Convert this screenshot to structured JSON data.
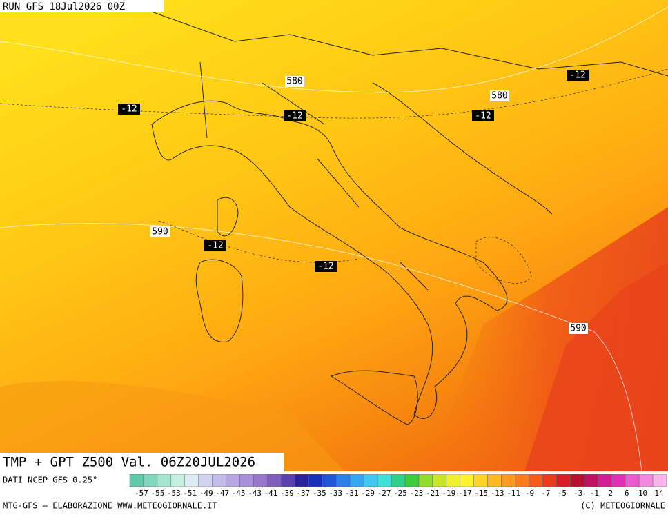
{
  "header": {
    "run": "RUN GFS 18Jul2026 00Z"
  },
  "map": {
    "title": "TMP + GPT Z500 Val. 06Z20JUL2026",
    "labels": [
      "580",
      "-12",
      "-12",
      "580",
      "-12",
      "-12",
      "590",
      "-12",
      "-12",
      "590"
    ]
  },
  "legend": {
    "source": "DATI NCEP GFS 0.25°",
    "labels": [
      -57,
      -55,
      -53,
      -51,
      -49,
      -47,
      -45,
      -43,
      -41,
      -39,
      -37,
      -35,
      -33,
      -31,
      -29,
      -27,
      -25,
      -23,
      -21,
      -19,
      -17,
      -15,
      -13,
      -11,
      -9,
      -7,
      -5,
      -3,
      -1,
      2,
      6,
      10,
      14
    ],
    "colors": [
      "#5fc9a8",
      "#7fd8bb",
      "#a4e6cf",
      "#c6f0e0",
      "#dcecf2",
      "#d0d4f0",
      "#c2bdea",
      "#b8a6e4",
      "#a88fda",
      "#9877cc",
      "#7e5dbd",
      "#5b3fad",
      "#2a2399",
      "#1a2fb8",
      "#1f55d6",
      "#2a80e8",
      "#34a8f0",
      "#3fc8f2",
      "#3fe0d8",
      "#2fd08a",
      "#3ccc3c",
      "#8fdc2c",
      "#c8e628",
      "#f0f030",
      "#fff030",
      "#ffd42a",
      "#ffb824",
      "#ff9a1e",
      "#ff7a1a",
      "#f85a18",
      "#ec3a1c",
      "#d81e24",
      "#b8102e",
      "#c01062",
      "#d41c92",
      "#e030b8",
      "#ec5ad0",
      "#f488e0",
      "#f8b4ea"
    ]
  },
  "footer": {
    "left": "MTG-GFS — ELABORAZIONE WWW.METEOGIORNALE.IT",
    "right": "(C) METEOGIORNALE"
  }
}
